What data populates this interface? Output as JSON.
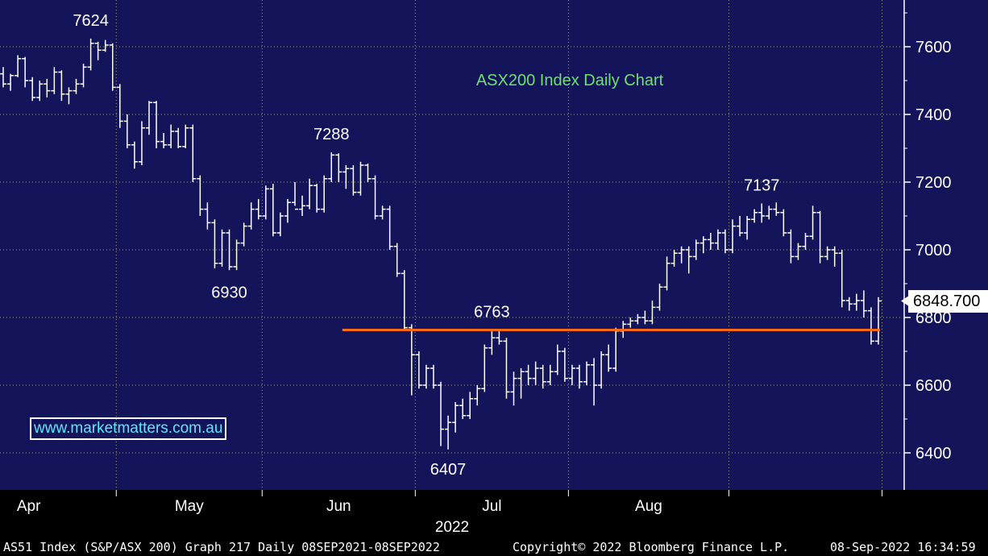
{
  "chart_data": {
    "type": "ohlc",
    "title": "ASX200 Index Daily Chart",
    "ylim": [
      6350,
      7720
    ],
    "y_ticks": [
      6400,
      6600,
      6800,
      7000,
      7200,
      7400,
      7600
    ],
    "x_month_labels": [
      "Apr",
      "May",
      "Jun",
      "Jul",
      "Aug"
    ],
    "year_label": "2022",
    "grid": true,
    "colors": {
      "background": "#14145a",
      "bars": "#ffffff",
      "grid": "#9a9a9a",
      "support_line": "#ff6a1a",
      "title": "#6fe06f"
    },
    "support_line": {
      "value": 6763
    },
    "last_price": "6848.700",
    "annotations": [
      {
        "text": "7624",
        "value": 7624
      },
      {
        "text": "7288",
        "value": 7288
      },
      {
        "text": "6930",
        "value": 6930
      },
      {
        "text": "6763",
        "value": 6763
      },
      {
        "text": "6407",
        "value": 6407
      },
      {
        "text": "7137",
        "value": 7137
      }
    ],
    "bars": [
      [
        7520,
        7540,
        7480,
        7490
      ],
      [
        7490,
        7520,
        7470,
        7515
      ],
      [
        7515,
        7575,
        7510,
        7565
      ],
      [
        7565,
        7570,
        7480,
        7500
      ],
      [
        7500,
        7510,
        7440,
        7450
      ],
      [
        7450,
        7500,
        7440,
        7490
      ],
      [
        7490,
        7505,
        7450,
        7470
      ],
      [
        7470,
        7540,
        7460,
        7525
      ],
      [
        7525,
        7530,
        7440,
        7460
      ],
      [
        7460,
        7480,
        7430,
        7470
      ],
      [
        7470,
        7505,
        7460,
        7490
      ],
      [
        7490,
        7550,
        7480,
        7540
      ],
      [
        7540,
        7624,
        7530,
        7610
      ],
      [
        7610,
        7615,
        7560,
        7590
      ],
      [
        7590,
        7620,
        7585,
        7605
      ],
      [
        7605,
        7610,
        7470,
        7480
      ],
      [
        7480,
        7490,
        7360,
        7380
      ],
      [
        7380,
        7400,
        7300,
        7310
      ],
      [
        7310,
        7320,
        7240,
        7260
      ],
      [
        7260,
        7380,
        7250,
        7360
      ],
      [
        7360,
        7440,
        7340,
        7435
      ],
      [
        7435,
        7440,
        7300,
        7320
      ],
      [
        7320,
        7345,
        7300,
        7310
      ],
      [
        7310,
        7370,
        7300,
        7350
      ],
      [
        7350,
        7360,
        7300,
        7305
      ],
      [
        7305,
        7370,
        7300,
        7360
      ],
      [
        7360,
        7370,
        7200,
        7210
      ],
      [
        7210,
        7220,
        7100,
        7120
      ],
      [
        7120,
        7140,
        7060,
        7080
      ],
      [
        7080,
        7090,
        6945,
        6960
      ],
      [
        6960,
        7060,
        6950,
        7050
      ],
      [
        7050,
        7060,
        6940,
        6950
      ],
      [
        6950,
        7030,
        6940,
        7020
      ],
      [
        7020,
        7080,
        7010,
        7070
      ],
      [
        7070,
        7140,
        7060,
        7120
      ],
      [
        7120,
        7150,
        7090,
        7100
      ],
      [
        7100,
        7190,
        7090,
        7180
      ],
      [
        7180,
        7195,
        7040,
        7050
      ],
      [
        7050,
        7110,
        7040,
        7100
      ],
      [
        7100,
        7150,
        7080,
        7140
      ],
      [
        7140,
        7200,
        7130,
        7120
      ],
      [
        7120,
        7160,
        7100,
        7130
      ],
      [
        7130,
        7210,
        7120,
        7190
      ],
      [
        7190,
        7195,
        7110,
        7120
      ],
      [
        7120,
        7220,
        7110,
        7210
      ],
      [
        7210,
        7288,
        7200,
        7280
      ],
      [
        7280,
        7285,
        7200,
        7230
      ],
      [
        7230,
        7250,
        7180,
        7240
      ],
      [
        7240,
        7250,
        7160,
        7170
      ],
      [
        7170,
        7260,
        7160,
        7250
      ],
      [
        7250,
        7255,
        7200,
        7210
      ],
      [
        7210,
        7220,
        7090,
        7100
      ],
      [
        7100,
        7130,
        7090,
        7120
      ],
      [
        7120,
        7130,
        7000,
        7010
      ],
      [
        7010,
        7020,
        6920,
        6930
      ],
      [
        6930,
        6940,
        6760,
        6770
      ],
      [
        6770,
        6780,
        6570,
        6690
      ],
      [
        6690,
        6700,
        6590,
        6600
      ],
      [
        6600,
        6660,
        6590,
        6650
      ],
      [
        6650,
        6660,
        6590,
        6600
      ],
      [
        6600,
        6610,
        6420,
        6470
      ],
      [
        6470,
        6510,
        6410,
        6490
      ],
      [
        6490,
        6550,
        6460,
        6540
      ],
      [
        6540,
        6560,
        6500,
        6510
      ],
      [
        6510,
        6580,
        6500,
        6560
      ],
      [
        6560,
        6600,
        6540,
        6590
      ],
      [
        6590,
        6720,
        6580,
        6710
      ],
      [
        6710,
        6763,
        6690,
        6740
      ],
      [
        6740,
        6763,
        6720,
        6730
      ],
      [
        6730,
        6740,
        6560,
        6580
      ],
      [
        6580,
        6640,
        6540,
        6620
      ],
      [
        6620,
        6650,
        6560,
        6640
      ],
      [
        6640,
        6660,
        6600,
        6620
      ],
      [
        6620,
        6670,
        6600,
        6650
      ],
      [
        6650,
        6660,
        6590,
        6610
      ],
      [
        6610,
        6660,
        6600,
        6640
      ],
      [
        6640,
        6720,
        6630,
        6700
      ],
      [
        6700,
        6710,
        6610,
        6620
      ],
      [
        6620,
        6660,
        6600,
        6650
      ],
      [
        6650,
        6660,
        6590,
        6610
      ],
      [
        6610,
        6670,
        6600,
        6660
      ],
      [
        6660,
        6680,
        6540,
        6600
      ],
      [
        6600,
        6700,
        6590,
        6690
      ],
      [
        6690,
        6720,
        6640,
        6650
      ],
      [
        6650,
        6770,
        6640,
        6760
      ],
      [
        6760,
        6790,
        6740,
        6780
      ],
      [
        6780,
        6800,
        6770,
        6790
      ],
      [
        6790,
        6810,
        6780,
        6800
      ],
      [
        6800,
        6820,
        6780,
        6790
      ],
      [
        6790,
        6850,
        6780,
        6830
      ],
      [
        6830,
        6900,
        6820,
        6890
      ],
      [
        6890,
        6980,
        6880,
        6960
      ],
      [
        6960,
        7000,
        6950,
        6990
      ],
      [
        6990,
        7010,
        6960,
        7000
      ],
      [
        7000,
        7010,
        6930,
        6980
      ],
      [
        6980,
        7030,
        6970,
        7020
      ],
      [
        7020,
        7040,
        6990,
        7030
      ],
      [
        7030,
        7050,
        7000,
        7020
      ],
      [
        7020,
        7060,
        7000,
        7050
      ],
      [
        7050,
        7060,
        6990,
        7000
      ],
      [
        7000,
        7090,
        6990,
        7070
      ],
      [
        7070,
        7100,
        7040,
        7050
      ],
      [
        7050,
        7100,
        7030,
        7090
      ],
      [
        7090,
        7120,
        7080,
        7110
      ],
      [
        7110,
        7137,
        7080,
        7100
      ],
      [
        7100,
        7130,
        7090,
        7120
      ],
      [
        7120,
        7140,
        7100,
        7110
      ],
      [
        7110,
        7120,
        7040,
        7050
      ],
      [
        7050,
        7060,
        6960,
        6980
      ],
      [
        6980,
        7020,
        6970,
        7010
      ],
      [
        7010,
        7050,
        7000,
        7040
      ],
      [
        7040,
        7130,
        7030,
        7110
      ],
      [
        7110,
        7115,
        6960,
        6980
      ],
      [
        6980,
        7010,
        6970,
        7000
      ],
      [
        7000,
        7010,
        6950,
        6990
      ],
      [
        6990,
        7000,
        6830,
        6850
      ],
      [
        6850,
        6860,
        6820,
        6840
      ],
      [
        6840,
        6870,
        6820,
        6850
      ],
      [
        6850,
        6880,
        6800,
        6820
      ],
      [
        6820,
        6830,
        6720,
        6730
      ],
      [
        6730,
        6860,
        6720,
        6848.7
      ]
    ]
  },
  "footer": {
    "left": "AS51 Index (S&P/ASX 200) Graph 217  Daily 08SEP2021-08SEP2022",
    "center": "Copyright© 2022 Bloomberg Finance L.P.",
    "right": "08-Sep-2022 16:34:59"
  },
  "watermark": "www.marketmatters.com.au"
}
